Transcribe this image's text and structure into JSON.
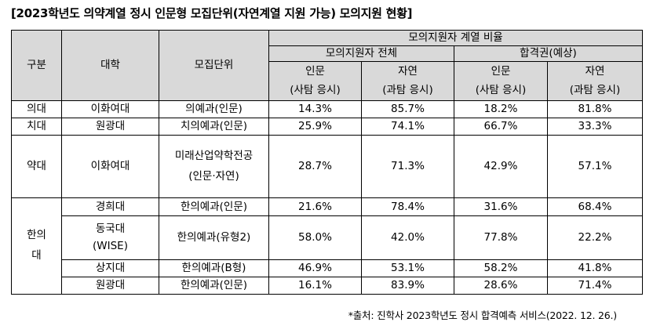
{
  "title": "[2023학년도 의약계열 정시 인문형 모집단위(자연계열 지원 가능) 모의지원 현황]",
  "headers": {
    "gubun": "구분",
    "univ": "대학",
    "unit": "모집단위",
    "ratio": "모의지원자 계열 비율",
    "all": "모의지원자 전체",
    "pass": "합격권(예상)",
    "inmun": "인문",
    "jayeon": "자연",
    "inmun_sub": "(사탐 응시)",
    "jayeon_sub": "(과탐 응시)"
  },
  "rows": [
    {
      "cat": "의대",
      "univ": "이화여대",
      "unit": "의예과(인문)",
      "all_in": "14.3%",
      "all_ja": "85.7%",
      "pass_in": "18.2%",
      "pass_ja": "81.8%"
    },
    {
      "cat": "치대",
      "univ": "원광대",
      "unit": "치의예과(인문)",
      "all_in": "25.9%",
      "all_ja": "74.1%",
      "pass_in": "66.7%",
      "pass_ja": "33.3%"
    },
    {
      "cat": "약대",
      "univ": "이화여대",
      "unit_line1": "미래산업약학전공",
      "unit_line2": "(인문·자연)",
      "all_in": "28.7%",
      "all_ja": "71.3%",
      "pass_in": "42.9%",
      "pass_ja": "57.1%"
    },
    {
      "cat_line1": "한의",
      "cat_line2": "대",
      "univ": "경희대",
      "unit": "한의예과(인문)",
      "all_in": "21.6%",
      "all_ja": "78.4%",
      "pass_in": "31.6%",
      "pass_ja": "68.4%"
    },
    {
      "univ_line1": "동국대",
      "univ_line2": "(WISE)",
      "unit": "한의예과(유형2)",
      "all_in": "58.0%",
      "all_ja": "42.0%",
      "pass_in": "77.8%",
      "pass_ja": "22.2%"
    },
    {
      "univ": "상지대",
      "unit": "한의예과(B형)",
      "all_in": "46.9%",
      "all_ja": "53.1%",
      "pass_in": "58.2%",
      "pass_ja": "41.8%"
    },
    {
      "univ": "원광대",
      "unit": "한의예과(인문)",
      "all_in": "16.1%",
      "all_ja": "83.9%",
      "pass_in": "28.6%",
      "pass_ja": "71.4%"
    }
  ],
  "source": "*출처: 진학사 2023학년도 정시 합격예측 서비스(2022. 12. 26.)"
}
